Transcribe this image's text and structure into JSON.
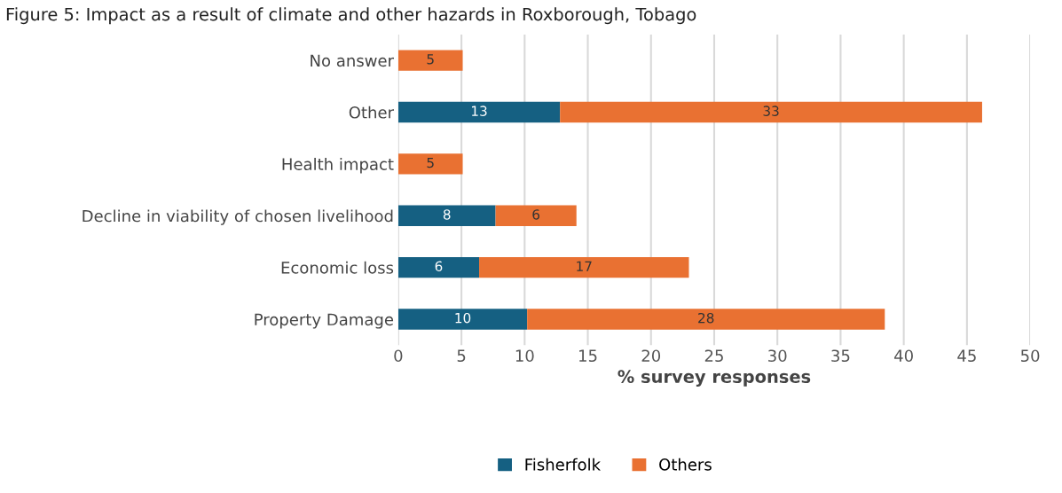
{
  "chart_data": {
    "type": "bar",
    "orientation": "horizontal",
    "stacked": true,
    "title": "Figure 5: Impact as a result of climate and other hazards in Roxborough, Tobago",
    "xlabel": "% survey responses",
    "categories": [
      "No answer",
      "Other",
      "Health impact",
      "Decline in viability of chosen livelihood",
      "Economic loss",
      "Property Damage"
    ],
    "series": [
      {
        "name": "Fisherfolk",
        "color": "#156082",
        "values": [
          null,
          12.8,
          null,
          7.7,
          6.4,
          10.2
        ],
        "value_labels": [
          null,
          "13",
          null,
          "8",
          "6",
          "10"
        ]
      },
      {
        "name": "Others",
        "color": "#e97132",
        "values": [
          5.1,
          33.4,
          5.1,
          6.4,
          16.6,
          28.3
        ],
        "value_labels": [
          "5",
          "33",
          "5",
          "6",
          "17",
          "28"
        ]
      }
    ],
    "xlim": [
      0,
      50
    ],
    "xticks": [
      0,
      5,
      10,
      15,
      20,
      25,
      30,
      35,
      40,
      45,
      50
    ],
    "grid": "x",
    "legend": "bottom"
  }
}
